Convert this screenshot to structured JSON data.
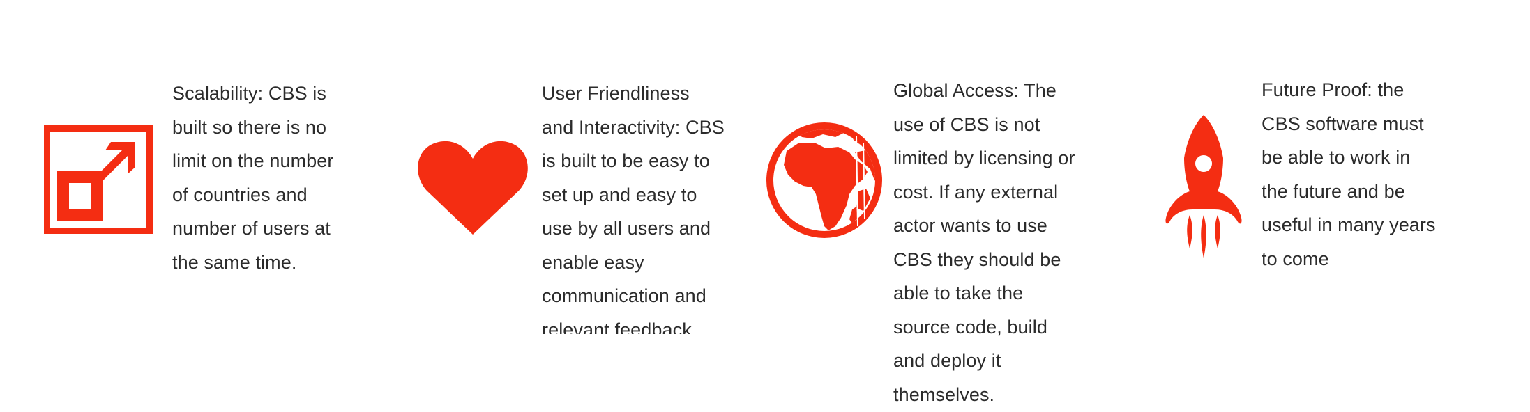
{
  "accent_color": "#f42d12",
  "features": [
    {
      "icon": "expand-icon",
      "text": "Scalability: CBS is built so there is no limit on the number of countries and number of users at the same time."
    },
    {
      "icon": "heart-icon",
      "text": "User Friendliness and Interactivity: CBS is built to be easy to set up and easy to use by all users and enable easy communication and relevant feedback among and to all users"
    },
    {
      "icon": "globe-icon",
      "text": "Global Access: The use of CBS is not limited by licensing or cost. If any external actor wants to use CBS they should be able to take the source code, build and deploy it themselves."
    },
    {
      "icon": "rocket-icon",
      "text": "Future Proof: the CBS software must be able to work in the future and be useful in many years to come"
    }
  ]
}
